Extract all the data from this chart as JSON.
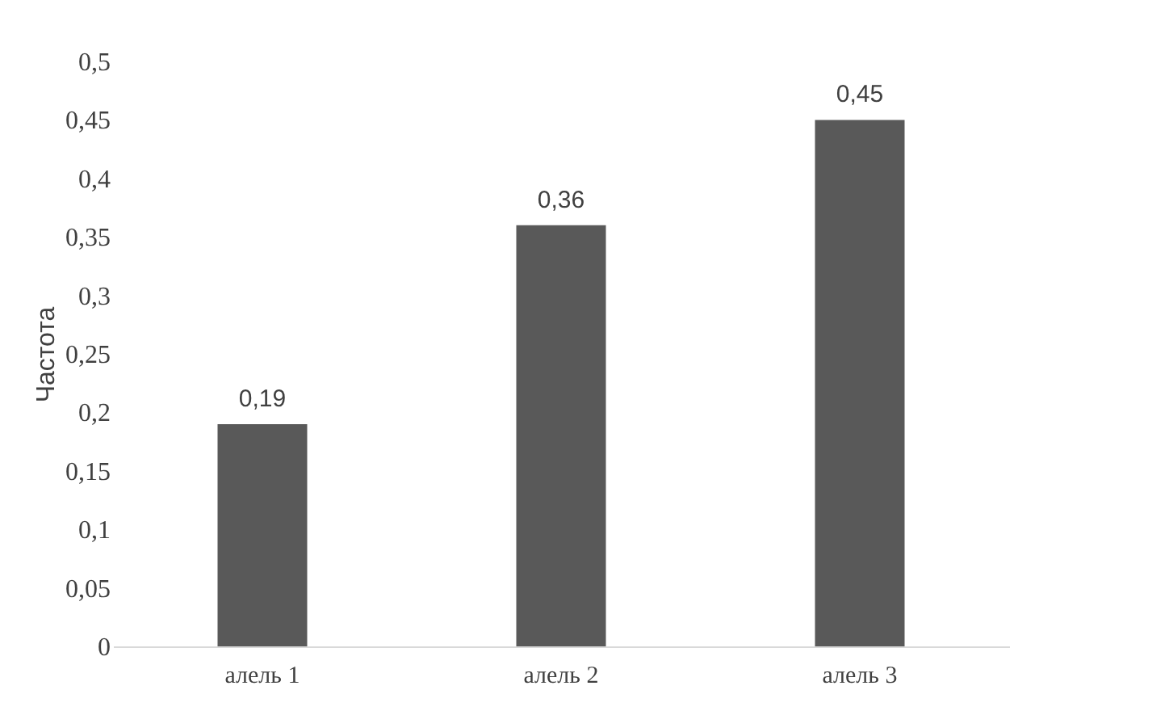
{
  "chart_data": {
    "type": "bar",
    "ylabel": "Частота",
    "categories": [
      "алель 1",
      "алель 2",
      "алель 3"
    ],
    "values": [
      0.19,
      0.36,
      0.45
    ],
    "value_labels": [
      "0,19",
      "0,36",
      "0,45"
    ],
    "color": "#595959",
    "ylim": [
      0,
      0.5
    ],
    "yticks": [
      0,
      {
        "value": 0.05,
        "label": "0,05"
      },
      {
        "value": 0.1,
        "label": "0,1"
      },
      {
        "value": 0.15,
        "label": "0,15"
      },
      {
        "value": 0.2,
        "label": "0,2"
      },
      {
        "value": 0.25,
        "label": "0,25"
      },
      {
        "value": 0.3,
        "label": "0,3"
      },
      {
        "value": 0.35,
        "label": "0,35"
      },
      {
        "value": 0.4,
        "label": "0,4"
      },
      {
        "value": 0.45,
        "label": "0,45"
      },
      {
        "value": 0.5,
        "label": "0,5"
      }
    ],
    "grid": false
  }
}
